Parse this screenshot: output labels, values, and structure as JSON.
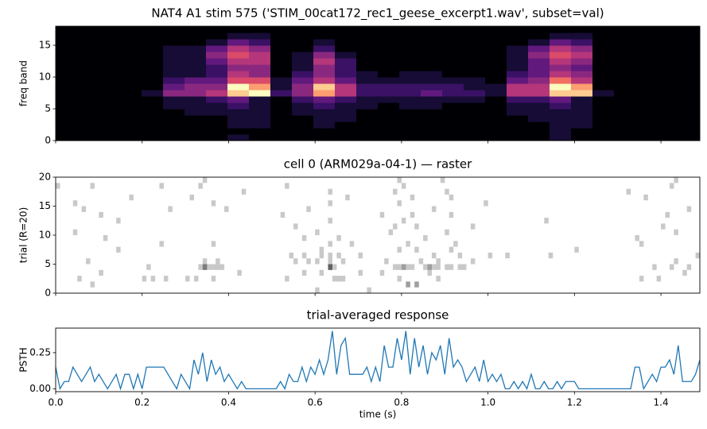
{
  "chart_data": [
    {
      "type": "heatmap",
      "title": "NAT4 A1 stim 575 ('STIM_00cat172_rec1_geese_excerpt1.wav', subset=val)",
      "ylabel": "freq band",
      "colormap": "magma",
      "ylim": [
        0,
        18
      ],
      "yticks": [
        0,
        5,
        10,
        15
      ],
      "z": [
        [
          0,
          0,
          0,
          0,
          0,
          0,
          0,
          0,
          0,
          0,
          0,
          0,
          0,
          0,
          0,
          0,
          0,
          0
        ],
        [
          0,
          0,
          0,
          0,
          0,
          0,
          0,
          0,
          0,
          0,
          0,
          0,
          0,
          0,
          0,
          0,
          0,
          0
        ],
        [
          0,
          0,
          0,
          0,
          0,
          0,
          0,
          0,
          0,
          0,
          0,
          0,
          0,
          0,
          0,
          0,
          0,
          0
        ],
        [
          0,
          0,
          0,
          0,
          0,
          0,
          0,
          0,
          0,
          0,
          0,
          0,
          0,
          0,
          0,
          0,
          0,
          0
        ],
        [
          0,
          0,
          0,
          0,
          0,
          0,
          0,
          0.1,
          0,
          0,
          0,
          0,
          0,
          0,
          0,
          0,
          0,
          0
        ],
        [
          0,
          0,
          0,
          0,
          0,
          0.1,
          0.1,
          0.4,
          0.3,
          0.2,
          0.1,
          0.1,
          0.1,
          0.1,
          0.1,
          0,
          0,
          0
        ],
        [
          0,
          0,
          0,
          0,
          0.1,
          0.1,
          0.1,
          0.4,
          0.4,
          0.3,
          0.1,
          0.1,
          0.1,
          0.1,
          0.1,
          0,
          0,
          0
        ],
        [
          0,
          0,
          0,
          0,
          0.1,
          0.1,
          0.2,
          0.5,
          0.4,
          0.3,
          0.2,
          0.2,
          0.3,
          0.4,
          0.3,
          0.1,
          0,
          0
        ],
        [
          0.1,
          0,
          0.1,
          0.1,
          0.1,
          0.2,
          0.3,
          0.9,
          1.0,
          0.6,
          0.5,
          0.4,
          0.5,
          0.6,
          0.5,
          0.3,
          0.1,
          0
        ],
        [
          0,
          0,
          0.1,
          0.1,
          0.1,
          0.1,
          0.1,
          1.0,
          0.8,
          0.6,
          0.4,
          0.4,
          0.5,
          0.5,
          0.4,
          0.2,
          0.1,
          0
        ],
        [
          0,
          0,
          0,
          0,
          0,
          0,
          0,
          0.2,
          0.1,
          0.1,
          0,
          0,
          0,
          0,
          0,
          0,
          0,
          0
        ],
        [
          0,
          0,
          0,
          0,
          0.1,
          0.1,
          0.2,
          0.4,
          0.4,
          0.3,
          0.2,
          0.1,
          0.1,
          0.1,
          0,
          0,
          0,
          0
        ],
        [
          0,
          0,
          0.1,
          0.1,
          0.1,
          0.2,
          0.3,
          0.8,
          0.9,
          0.5,
          0.4,
          0.4,
          0.5,
          0.4,
          0.2,
          0.1,
          0,
          0
        ],
        [
          0,
          0,
          0,
          0.1,
          0.1,
          0.1,
          0.2,
          0.5,
          0.5,
          0.3,
          0.2,
          0.2,
          0.2,
          0.1,
          0,
          0,
          0,
          0
        ],
        [
          0,
          0,
          0,
          0,
          0,
          0.1,
          0.1,
          0.2,
          0.2,
          0.1,
          0.1,
          0,
          0,
          0,
          0,
          0,
          0,
          0
        ],
        [
          0,
          0,
          0,
          0,
          0,
          0,
          0.1,
          0.2,
          0.2,
          0.1,
          0,
          0,
          0,
          0,
          0,
          0,
          0,
          0
        ],
        [
          0,
          0,
          0,
          0,
          0,
          0.1,
          0.1,
          0.2,
          0.2,
          0.1,
          0.1,
          0,
          0,
          0,
          0,
          0,
          0,
          0
        ],
        [
          0,
          0,
          0,
          0,
          0,
          0.1,
          0.1,
          0.3,
          0.2,
          0.1,
          0.1,
          0,
          0,
          0,
          0,
          0,
          0,
          0
        ],
        [
          0,
          0,
          0,
          0,
          0,
          0,
          0.1,
          0.2,
          0.2,
          0.1,
          0,
          0,
          0,
          0,
          0,
          0,
          0,
          0
        ],
        [
          0,
          0,
          0,
          0,
          0,
          0,
          0.1,
          0.2,
          0.1,
          0.1,
          0,
          0,
          0,
          0,
          0,
          0,
          0,
          0
        ],
        [
          0,
          0,
          0,
          0,
          0,
          0,
          0,
          0.1,
          0.1,
          0,
          0,
          0,
          0,
          0,
          0,
          0,
          0,
          0
        ],
        [
          0,
          0,
          0,
          0,
          0.1,
          0.1,
          0.2,
          0.5,
          0.5,
          0.3,
          0.2,
          0.1,
          0.1,
          0.1,
          0.1,
          0,
          0,
          0
        ],
        [
          0,
          0,
          0,
          0.1,
          0.1,
          0.1,
          0.2,
          0.5,
          0.5,
          0.4,
          0.3,
          0.3,
          0.3,
          0.4,
          0.3,
          0.1,
          0,
          0
        ],
        [
          0.1,
          0.1,
          0.1,
          0.1,
          0.1,
          0.2,
          0.3,
          0.9,
          1.0,
          0.7,
          0.5,
          0.4,
          0.5,
          0.6,
          0.5,
          0.3,
          0.1,
          0
        ],
        [
          0,
          0,
          0.1,
          0.1,
          0.1,
          0.1,
          0.1,
          0.9,
          0.8,
          0.5,
          0.4,
          0.3,
          0.4,
          0.5,
          0.4,
          0.2,
          0.1,
          0
        ],
        [
          0,
          0,
          0,
          0,
          0,
          0,
          0,
          0.1,
          0,
          0,
          0,
          0,
          0,
          0,
          0,
          0,
          0,
          0
        ],
        [
          0,
          0,
          0,
          0,
          0,
          0,
          0,
          0,
          0,
          0,
          0,
          0,
          0,
          0,
          0,
          0,
          0,
          0
        ],
        [
          0,
          0,
          0,
          0,
          0,
          0,
          0,
          0,
          0,
          0,
          0,
          0,
          0,
          0,
          0,
          0,
          0,
          0
        ],
        [
          0,
          0,
          0,
          0,
          0,
          0,
          0,
          0,
          0,
          0,
          0,
          0,
          0,
          0,
          0,
          0,
          0,
          0
        ],
        [
          0,
          0,
          0,
          0,
          0,
          0,
          0,
          0,
          0,
          0,
          0,
          0,
          0,
          0,
          0,
          0,
          0,
          0
        ]
      ]
    },
    {
      "type": "raster",
      "title": "cell 0 (ARM029a-04-1) — raster",
      "ylabel": "trial (R=20)",
      "ylim": [
        0,
        20
      ],
      "yticks": [
        0,
        5,
        10,
        15,
        20
      ],
      "trials": [
        [
          0.6,
          0.72
        ],
        [
          0.81,
          0.81,
          0.83,
          0.83,
          0.08
        ],
        [
          0.05,
          0.2,
          0.22,
          0.25,
          0.3,
          0.32,
          0.36,
          0.53,
          0.64,
          0.65,
          0.66,
          0.79,
          0.88,
          1.35,
          1.39
        ],
        [
          0.1,
          0.42,
          0.57,
          0.61,
          0.7,
          0.75,
          0.86,
          1.45
        ],
        [
          0.21,
          0.33,
          0.34,
          0.34,
          0.34,
          0.35,
          0.36,
          0.37,
          0.38,
          0.63,
          0.63,
          0.63,
          0.63,
          0.64,
          0.78,
          0.79,
          0.8,
          0.8,
          0.81,
          0.82,
          0.85,
          0.86,
          0.86,
          0.87,
          0.88,
          0.9,
          0.91,
          0.93,
          0.94,
          1.38,
          1.42,
          1.46
        ],
        [
          0.07,
          0.34,
          0.37,
          0.55,
          0.58,
          0.6,
          0.63,
          0.66,
          0.76,
          0.84,
          0.88,
          0.96,
          1.43
        ],
        [
          0.54,
          0.57,
          0.61,
          0.63,
          0.65,
          0.7,
          0.87,
          0.93,
          1.0,
          1.04,
          1.14,
          1.48
        ],
        [
          0.14,
          0.61,
          0.79,
          0.83,
          0.91,
          1.2
        ],
        [
          0.24,
          0.36,
          0.63,
          0.68,
          0.81,
          0.92,
          1.35
        ],
        [
          0.11,
          0.57,
          0.65,
          0.85,
          1.34
        ],
        [
          0.04,
          0.6,
          0.77,
          0.9,
          1.43
        ],
        [
          0.55,
          0.78,
          0.83,
          0.96,
          1.4
        ],
        [
          0.14,
          0.63,
          0.8,
          1.13
        ],
        [
          0.1,
          0.52,
          0.75,
          0.82,
          0.91,
          1.41
        ],
        [
          0.06,
          0.26,
          0.39,
          0.58,
          0.87,
          1.46
        ],
        [
          0.04,
          0.36,
          0.63,
          0.79,
          0.99
        ],
        [
          0.17,
          0.31,
          0.67,
          0.82,
          0.91,
          1.36
        ],
        [
          0.43,
          0.63,
          0.78,
          0.9,
          1.32
        ],
        [
          0.0,
          0.08,
          0.24,
          0.33,
          0.53,
          0.8,
          1.42
        ],
        [
          0.34,
          0.79,
          0.89,
          1.43
        ]
      ]
    },
    {
      "type": "line",
      "title": "trial-averaged response",
      "ylabel": "PSTH",
      "xlabel": "time (s)",
      "color": "#1f77b4",
      "xlim": [
        0,
        1.49
      ],
      "xticks": [
        {
          "value": 0,
          "label": "0.0"
        },
        {
          "value": 0.2,
          "label": "0.2"
        },
        {
          "value": 0.4,
          "label": "0.4"
        },
        {
          "value": 0.6,
          "label": "0.6"
        },
        {
          "value": 0.8,
          "label": "0.8"
        },
        {
          "value": 1.0,
          "label": "1.0"
        },
        {
          "value": 1.2,
          "label": "1.2"
        },
        {
          "value": 1.4,
          "label": "1.4"
        }
      ],
      "ylim": [
        -0.02,
        0.42
      ],
      "yticks": [
        {
          "value": 0,
          "label": "0.00"
        },
        {
          "value": 0.25,
          "label": "0.25"
        }
      ],
      "x": [
        0,
        0.01,
        0.02,
        0.03,
        0.04,
        0.05,
        0.06,
        0.07,
        0.08,
        0.09,
        0.1,
        0.11,
        0.12,
        0.13,
        0.14,
        0.15,
        0.16,
        0.17,
        0.18,
        0.19,
        0.2,
        0.21,
        0.22,
        0.23,
        0.24,
        0.25,
        0.26,
        0.27,
        0.28,
        0.29,
        0.3,
        0.31,
        0.32,
        0.33,
        0.34,
        0.35,
        0.36,
        0.37,
        0.38,
        0.39,
        0.4,
        0.41,
        0.42,
        0.43,
        0.44,
        0.45,
        0.46,
        0.47,
        0.48,
        0.49,
        0.5,
        0.51,
        0.52,
        0.53,
        0.54,
        0.55,
        0.56,
        0.57,
        0.58,
        0.59,
        0.6,
        0.61,
        0.62,
        0.63,
        0.64,
        0.65,
        0.66,
        0.67,
        0.68,
        0.69,
        0.7,
        0.71,
        0.72,
        0.73,
        0.74,
        0.75,
        0.76,
        0.77,
        0.78,
        0.79,
        0.8,
        0.81,
        0.82,
        0.83,
        0.84,
        0.85,
        0.86,
        0.87,
        0.88,
        0.89,
        0.9,
        0.91,
        0.92,
        0.93,
        0.94,
        0.95,
        0.96,
        0.97,
        0.98,
        0.99,
        1.0,
        1.01,
        1.02,
        1.03,
        1.04,
        1.05,
        1.06,
        1.07,
        1.08,
        1.09,
        1.1,
        1.11,
        1.12,
        1.13,
        1.14,
        1.15,
        1.16,
        1.17,
        1.18,
        1.19,
        1.2,
        1.21,
        1.22,
        1.23,
        1.24,
        1.25,
        1.26,
        1.27,
        1.28,
        1.29,
        1.3,
        1.31,
        1.32,
        1.33,
        1.34,
        1.35,
        1.36,
        1.37,
        1.38,
        1.39,
        1.4,
        1.41,
        1.42,
        1.43,
        1.44,
        1.45,
        1.46,
        1.47,
        1.48,
        1.49
      ],
      "values": [
        0.15,
        0,
        0.05,
        0.05,
        0.15,
        0.1,
        0.05,
        0.1,
        0.15,
        0.05,
        0.1,
        0.05,
        0,
        0.05,
        0.1,
        0,
        0.1,
        0.1,
        0,
        0.1,
        0,
        0.15,
        0.15,
        0.15,
        0.15,
        0.15,
        0.1,
        0.05,
        0,
        0.1,
        0.05,
        0,
        0.2,
        0.1,
        0.25,
        0.05,
        0.2,
        0.1,
        0.15,
        0.05,
        0.1,
        0.05,
        0,
        0.05,
        0,
        0,
        0,
        0,
        0,
        0,
        0,
        0,
        0.05,
        0,
        0.1,
        0.05,
        0.05,
        0.15,
        0.05,
        0.15,
        0.1,
        0.2,
        0.1,
        0.2,
        0.4,
        0.1,
        0.3,
        0.35,
        0.1,
        0.1,
        0.1,
        0.1,
        0.15,
        0.05,
        0.15,
        0.05,
        0.3,
        0.15,
        0.15,
        0.35,
        0.2,
        0.4,
        0.1,
        0.35,
        0.15,
        0.3,
        0.1,
        0.25,
        0.2,
        0.3,
        0.1,
        0.35,
        0.15,
        0.2,
        0.15,
        0.05,
        0.1,
        0.15,
        0.05,
        0.2,
        0.05,
        0.1,
        0.05,
        0.1,
        0,
        0,
        0.05,
        0,
        0.05,
        0,
        0.1,
        0,
        0,
        0.05,
        0,
        0,
        0.05,
        0,
        0.05,
        0.05,
        0.05,
        0,
        0,
        0,
        0,
        0,
        0,
        0,
        0,
        0,
        0,
        0,
        0,
        0,
        0.15,
        0.15,
        0,
        0.05,
        0.1,
        0.05,
        0.15,
        0.15,
        0.2,
        0.1,
        0.3,
        0.05,
        0.05,
        0.05,
        0.1,
        0.2
      ]
    }
  ]
}
